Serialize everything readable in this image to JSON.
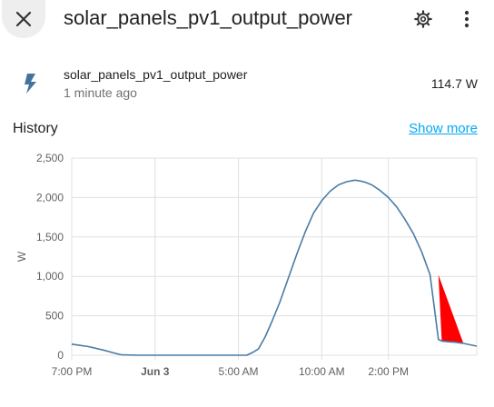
{
  "dialog": {
    "title": "solar_panels_pv1_output_power",
    "icons": {
      "close": "close-icon",
      "settings": "gear-icon",
      "menu": "more-vertical-icon"
    }
  },
  "entity": {
    "icon": "flash-icon",
    "name": "solar_panels_pv1_output_power",
    "last_changed": "1 minute ago",
    "state": "114.7 W"
  },
  "history": {
    "title": "History",
    "show_more": "Show more"
  },
  "colors": {
    "line": "#4a7ba6",
    "highlight": "#ff0000",
    "link": "#03a9f4",
    "grid": "#e0e0e0"
  },
  "chart_data": {
    "type": "line",
    "ylabel": "W",
    "xlabel": "",
    "ylim": [
      0,
      2500
    ],
    "grid": true,
    "y_ticks": [
      "0",
      "500",
      "1,000",
      "1,500",
      "2,000",
      "2,500"
    ],
    "x_ticks": [
      "7:00 PM",
      "Jun 3",
      "5:00 AM",
      "10:00 AM",
      "2:00 PM"
    ],
    "x_range_hours": [
      0,
      24.3
    ],
    "x_tick_hours": [
      0,
      5,
      10,
      15,
      19
    ],
    "x_tick_bold": [
      false,
      true,
      false,
      false,
      false
    ],
    "series": [
      {
        "name": "",
        "x": [
          0,
          1,
          2,
          2.5,
          3,
          4,
          6,
          8,
          10,
          10.5,
          10.9,
          11.2,
          11.6,
          12,
          12.5,
          13,
          13.5,
          14,
          14.5,
          15,
          15.5,
          16,
          16.5,
          17,
          17.3,
          17.6,
          18,
          18.5,
          19,
          19.5,
          20,
          20.5,
          21,
          21.5,
          22,
          22.2,
          22.6,
          23,
          23.5,
          24.3
        ],
        "y": [
          140,
          110,
          60,
          30,
          5,
          0,
          0,
          0,
          0,
          0,
          40,
          80,
          230,
          420,
          680,
          980,
          1280,
          1560,
          1800,
          1960,
          2080,
          2160,
          2200,
          2220,
          2210,
          2195,
          2160,
          2090,
          2000,
          1880,
          1720,
          1540,
          1310,
          1020,
          200,
          180,
          170,
          165,
          150,
          115
        ]
      }
    ],
    "highlight_polygon": {
      "x": [
        22.0,
        23.5,
        22.2
      ],
      "y": [
        1020,
        150,
        180
      ]
    }
  }
}
